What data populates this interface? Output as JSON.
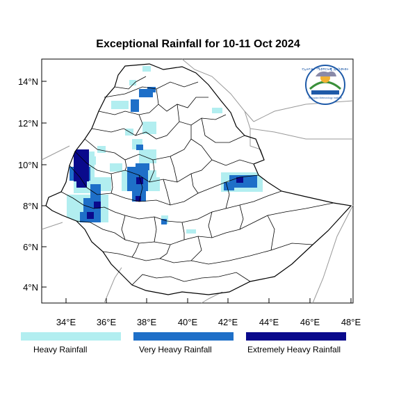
{
  "title": "Exceptional Rainfall for 10-11 Oct 2024",
  "axes": {
    "y_ticks": [
      "14°N",
      "12°N",
      "10°N",
      "8°N",
      "6°N",
      "4°N"
    ],
    "x_ticks": [
      "34°E",
      "36°E",
      "38°E",
      "40°E",
      "42°E",
      "44°E",
      "46°E",
      "48°E"
    ],
    "lon_range": [
      32.8,
      48.2
    ],
    "lat_range": [
      3.3,
      14.9
    ]
  },
  "legend": [
    {
      "label": "Heavy Rainfall",
      "color": "#b2eef0"
    },
    {
      "label": "Very Heavy Rainfall",
      "color": "#1e6fc8"
    },
    {
      "label": "Extremely Heavy Rainfall",
      "color": "#0a0a8c"
    }
  ],
  "colors": {
    "heavy": "#b2eef0",
    "very_heavy": "#1e6fc8",
    "extreme": "#0a0a8c",
    "boundary": "#000000",
    "neighbor": "#999999"
  },
  "logo": {
    "text": "Ethiopian Meteorology Institute"
  }
}
